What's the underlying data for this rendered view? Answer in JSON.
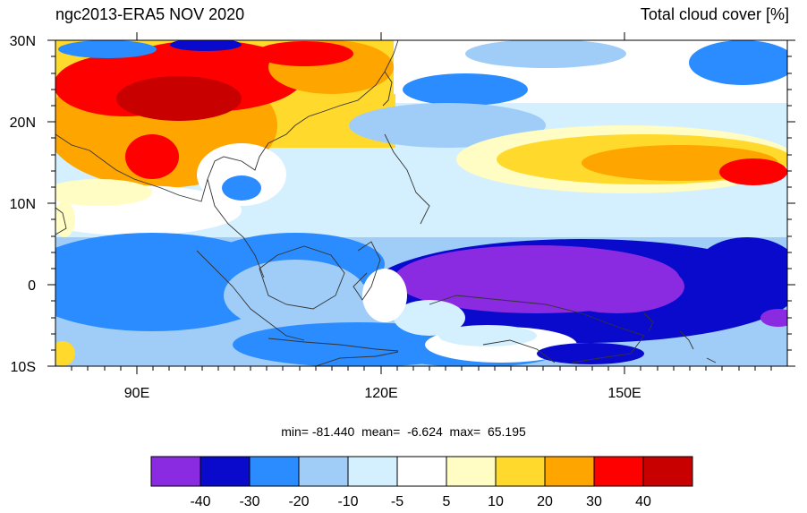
{
  "title_left": "ngc2013-ERA5 NOV 2020",
  "title_right": "Total cloud cover [%]",
  "lat_labels": [
    "30N",
    "20N",
    "10N",
    "0",
    "10S"
  ],
  "lon_labels": [
    "90E",
    "120E",
    "150E"
  ],
  "stats": "min= -81.440  mean=  -6.624  max=  65.195",
  "colorbar": {
    "colors": [
      "#8a2be2",
      "#0a0acc",
      "#2a8cff",
      "#9fcdf7",
      "#d4f0ff",
      "#ffffff",
      "#fffcc4",
      "#ffd92b",
      "#ffa500",
      "#ff0000",
      "#c80000"
    ],
    "labels": [
      "-40",
      "-30",
      "-20",
      "-10",
      "-5",
      "5",
      "10",
      "20",
      "30",
      "40"
    ]
  }
}
